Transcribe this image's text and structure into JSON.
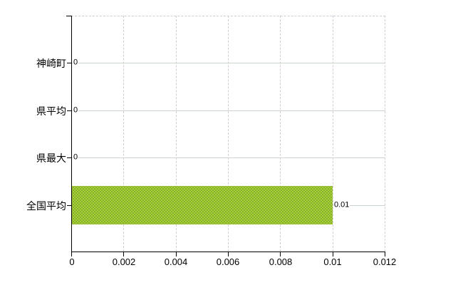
{
  "chart_data": {
    "type": "bar",
    "orientation": "horizontal",
    "title": "",
    "xlabel": "",
    "ylabel": "",
    "categories": [
      "神崎町",
      "県平均",
      "県最大",
      "全国平均"
    ],
    "values": [
      0,
      0,
      0,
      0.01
    ],
    "value_labels": [
      "0",
      "0",
      "0",
      "0.01"
    ],
    "xlim": [
      0,
      0.012
    ],
    "x_ticks": [
      "0",
      "0.002",
      "0.004",
      "0.006",
      "0.008",
      "0.01",
      "0.012"
    ],
    "x_tick_values": [
      0,
      0.002,
      0.004,
      0.006,
      0.008,
      0.01,
      0.012
    ],
    "grid": "on",
    "legend": "none",
    "colors": {
      "bar_fill": "#a6d139",
      "bar_dither_dot": "#7fa42a",
      "axis": "#000000",
      "hgrid": "#ccd5cb",
      "vgrid_dashed": "#d1ccd6",
      "background": "#ffffff",
      "text": "#000000"
    }
  }
}
